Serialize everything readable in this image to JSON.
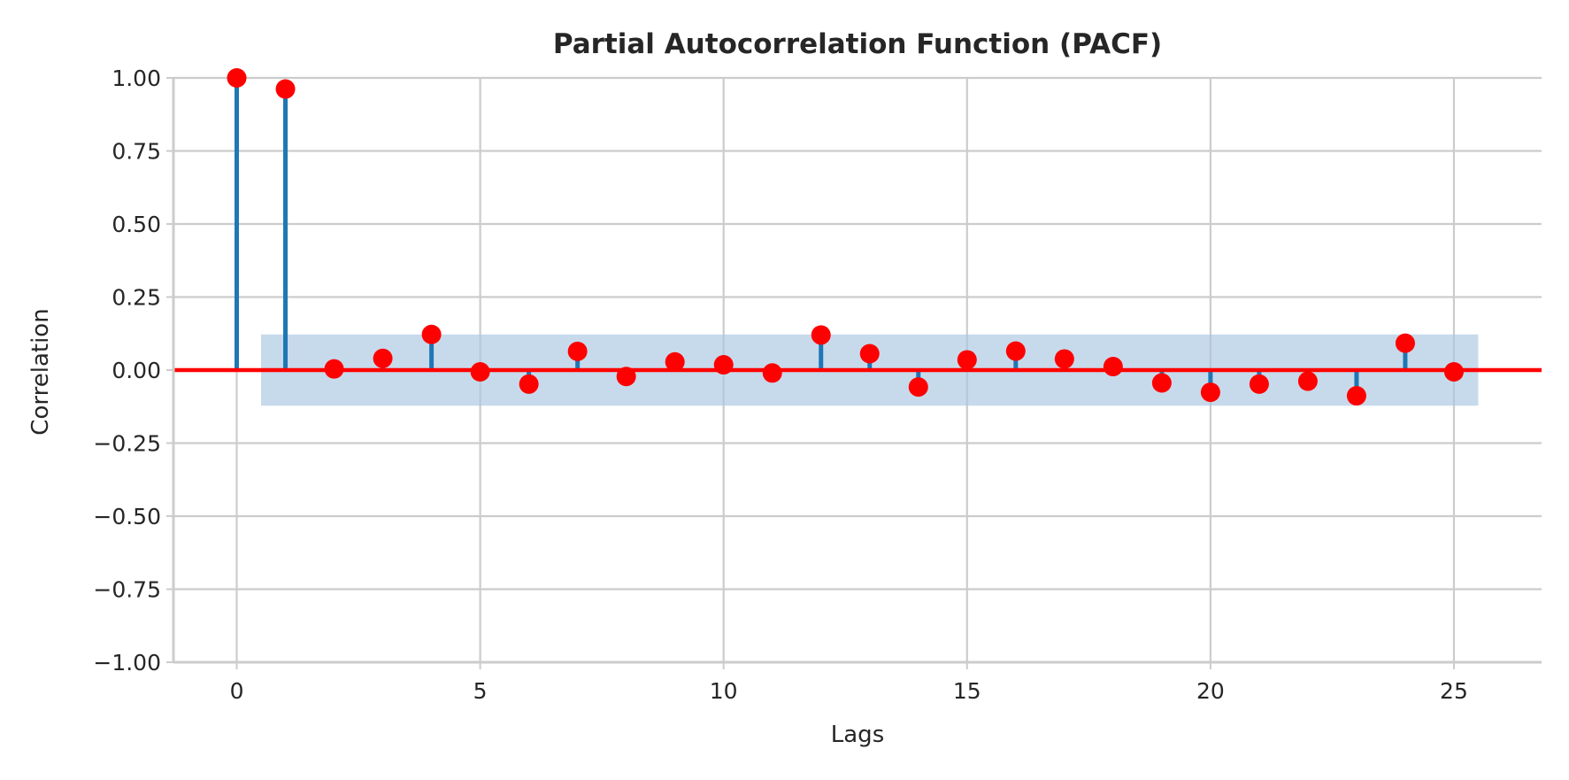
{
  "chart_data": {
    "type": "stem",
    "title": "Partial Autocorrelation Function (PACF)",
    "xlabel": "Lags",
    "ylabel": "Correlation",
    "xlim": [
      -1.3,
      26.8
    ],
    "ylim": [
      -1.0,
      1.0
    ],
    "x_ticks": [
      0,
      5,
      10,
      15,
      20,
      25
    ],
    "x_tick_labels": [
      "0",
      "5",
      "10",
      "15",
      "20",
      "25"
    ],
    "y_ticks": [
      1.0,
      0.75,
      0.5,
      0.25,
      0.0,
      -0.25,
      -0.5,
      -0.75,
      -1.0
    ],
    "y_tick_labels": [
      "1.00",
      "0.75",
      "0.50",
      "0.25",
      "0.00",
      "−0.25",
      "−0.50",
      "−0.75",
      "−1.00"
    ],
    "grid": true,
    "lags": [
      0,
      1,
      2,
      3,
      4,
      5,
      6,
      7,
      8,
      9,
      10,
      11,
      12,
      13,
      14,
      15,
      16,
      17,
      18,
      19,
      20,
      21,
      22,
      23,
      24,
      25
    ],
    "values": [
      1.0,
      0.962,
      0.004,
      0.04,
      0.122,
      -0.006,
      -0.048,
      0.064,
      -0.022,
      0.028,
      0.018,
      -0.01,
      0.12,
      0.056,
      -0.058,
      0.035,
      0.065,
      0.038,
      0.012,
      -0.044,
      -0.076,
      -0.048,
      -0.038,
      -0.088,
      0.092,
      -0.006
    ],
    "confidence_band": {
      "lower": -0.122,
      "upper": 0.122,
      "x_start": 0.5,
      "x_end": 25.5
    },
    "zero_line": 0.0,
    "colors": {
      "stems": "#1f77b4",
      "markers": "#ff0000",
      "zero_line": "#ff0000",
      "band": "#a9c6e2",
      "grid": "#cccccc",
      "spines": "#cccccc"
    }
  }
}
